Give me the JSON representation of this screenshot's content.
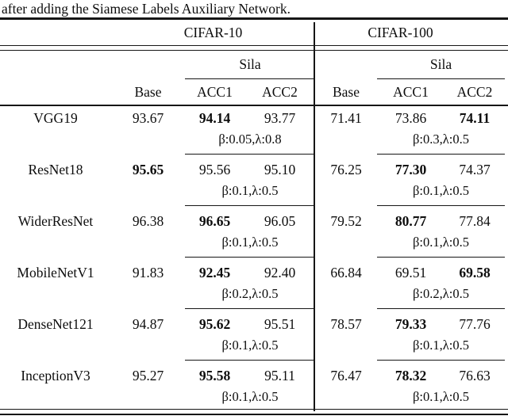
{
  "caption": "after adding the Siamese Labels Auxiliary Network.",
  "table": {
    "dataset_headers": {
      "cifar10": "CIFAR-10",
      "cifar100": "CIFAR-100"
    },
    "method_label": "Sila",
    "col_headers": {
      "base": "Base",
      "acc1": "ACC1",
      "acc2": "ACC2"
    },
    "rows": [
      {
        "model": "VGG19",
        "cells": [
          {
            "v": "93.67",
            "b": false
          },
          {
            "v": "94.14",
            "b": true
          },
          {
            "v": "93.77",
            "b": false
          },
          {
            "v": "71.41",
            "b": false
          },
          {
            "v": "73.86",
            "b": false
          },
          {
            "v": "74.11",
            "b": true
          }
        ],
        "params10": "β:0.05,λ:0.8",
        "params100": "β:0.3,λ:0.5"
      },
      {
        "model": "ResNet18",
        "cells": [
          {
            "v": "95.65",
            "b": true
          },
          {
            "v": "95.56",
            "b": false
          },
          {
            "v": "95.10",
            "b": false
          },
          {
            "v": "76.25",
            "b": false
          },
          {
            "v": "77.30",
            "b": true
          },
          {
            "v": "74.37",
            "b": false
          }
        ],
        "params10": "β:0.1,λ:0.5",
        "params100": "β:0.1,λ:0.5"
      },
      {
        "model": "WiderResNet",
        "cells": [
          {
            "v": "96.38",
            "b": false
          },
          {
            "v": "96.65",
            "b": true
          },
          {
            "v": "96.05",
            "b": false
          },
          {
            "v": "79.52",
            "b": false
          },
          {
            "v": "80.77",
            "b": true
          },
          {
            "v": "77.84",
            "b": false
          }
        ],
        "params10": "β:0.1,λ:0.5",
        "params100": "β:0.1,λ:0.5"
      },
      {
        "model": "MobileNetV1",
        "cells": [
          {
            "v": "91.83",
            "b": false
          },
          {
            "v": "92.45",
            "b": true
          },
          {
            "v": "92.40",
            "b": false
          },
          {
            "v": "66.84",
            "b": false
          },
          {
            "v": "69.51",
            "b": false
          },
          {
            "v": "69.58",
            "b": true
          }
        ],
        "params10": "β:0.2,λ:0.5",
        "params100": "β:0.2,λ:0.5"
      },
      {
        "model": "DenseNet121",
        "cells": [
          {
            "v": "94.87",
            "b": false
          },
          {
            "v": "95.62",
            "b": true
          },
          {
            "v": "95.51",
            "b": false
          },
          {
            "v": "78.57",
            "b": false
          },
          {
            "v": "79.33",
            "b": true
          },
          {
            "v": "77.76",
            "b": false
          }
        ],
        "params10": "β:0.1,λ:0.5",
        "params100": "β:0.1,λ:0.5"
      },
      {
        "model": "InceptionV3",
        "cells": [
          {
            "v": "95.27",
            "b": false
          },
          {
            "v": "95.58",
            "b": true
          },
          {
            "v": "95.11",
            "b": false
          },
          {
            "v": "76.47",
            "b": false
          },
          {
            "v": "78.32",
            "b": true
          },
          {
            "v": "76.63",
            "b": false
          }
        ],
        "params10": "β:0.1,λ:0.5",
        "params100": "β:0.1,λ:0.5"
      }
    ]
  }
}
